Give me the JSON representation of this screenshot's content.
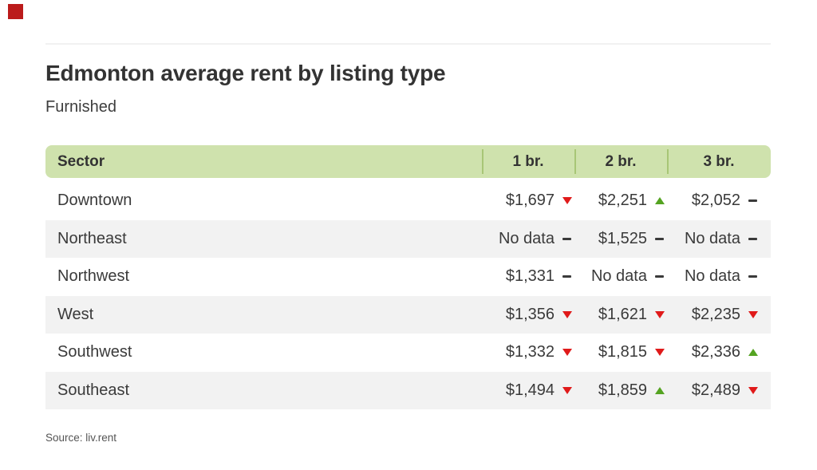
{
  "page": {
    "title": "Edmonton average rent by listing type",
    "subtitle": "Furnished",
    "source": "Source: liv.rent"
  },
  "colors": {
    "header_green": "#cfe2ad",
    "divider_green": "#a8c676",
    "row_alt_gray": "#f2f2f2",
    "trend_up_green": "#54a321",
    "trend_down_red": "#e01a1a",
    "trend_flat_dark": "#3a3a3a",
    "brand_mark_red": "#bb1b1b",
    "text_dark": "#333333"
  },
  "chart_data": {
    "type": "table",
    "title": "Edmonton average rent by listing type",
    "subtitle": "Furnished",
    "source": "Source: liv.rent",
    "columns": [
      "Sector",
      "1 br.",
      "2 br.",
      "3 br."
    ],
    "rows": [
      {
        "sector": "Downtown",
        "cells": [
          {
            "label": "$1,697",
            "value": 1697,
            "trend": "down"
          },
          {
            "label": "$2,251",
            "value": 2251,
            "trend": "up"
          },
          {
            "label": "$2,052",
            "value": 2052,
            "trend": "flat"
          }
        ]
      },
      {
        "sector": "Northeast",
        "cells": [
          {
            "label": "No data",
            "value": null,
            "trend": "flat"
          },
          {
            "label": "$1,525",
            "value": 1525,
            "trend": "flat"
          },
          {
            "label": "No data",
            "value": null,
            "trend": "flat"
          }
        ]
      },
      {
        "sector": "Northwest",
        "cells": [
          {
            "label": "$1,331",
            "value": 1331,
            "trend": "flat"
          },
          {
            "label": "No data",
            "value": null,
            "trend": "flat"
          },
          {
            "label": "No data",
            "value": null,
            "trend": "flat"
          }
        ]
      },
      {
        "sector": "West",
        "cells": [
          {
            "label": "$1,356",
            "value": 1356,
            "trend": "down"
          },
          {
            "label": "$1,621",
            "value": 1621,
            "trend": "down"
          },
          {
            "label": "$2,235",
            "value": 2235,
            "trend": "down"
          }
        ]
      },
      {
        "sector": "Southwest",
        "cells": [
          {
            "label": "$1,332",
            "value": 1332,
            "trend": "down"
          },
          {
            "label": "$1,815",
            "value": 1815,
            "trend": "down"
          },
          {
            "label": "$2,336",
            "value": 2336,
            "trend": "up"
          }
        ]
      },
      {
        "sector": "Southeast",
        "cells": [
          {
            "label": "$1,494",
            "value": 1494,
            "trend": "down"
          },
          {
            "label": "$1,859",
            "value": 1859,
            "trend": "up"
          },
          {
            "label": "$2,489",
            "value": 2489,
            "trend": "down"
          }
        ]
      }
    ]
  }
}
